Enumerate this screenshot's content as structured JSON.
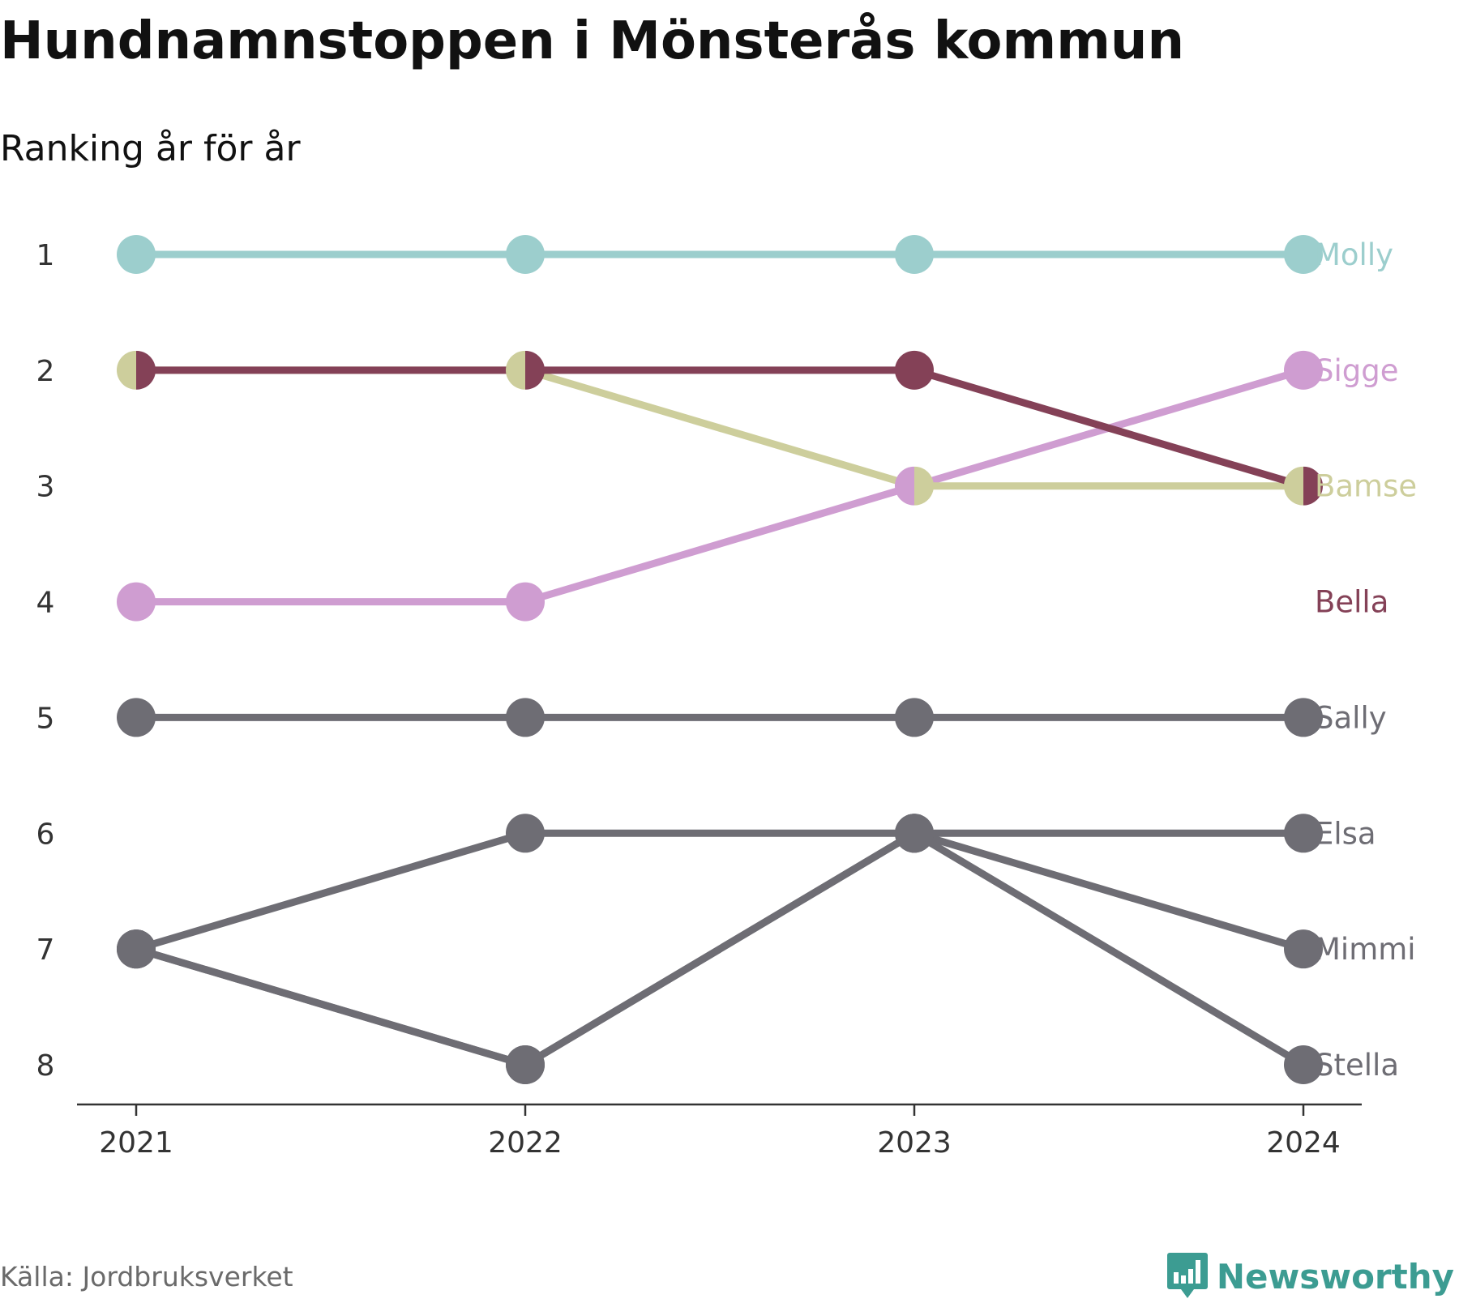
{
  "title": "Hundnamnstoppen i Mönsterås kommun",
  "subtitle": "Ranking år för år",
  "source": "Källa: Jordbruksverket",
  "brand": "Newsworthy",
  "brand_color": "#3c9c92",
  "chart_data": {
    "type": "line",
    "x": [
      "2021",
      "2022",
      "2023",
      "2024"
    ],
    "yticks": [
      "1",
      "2",
      "3",
      "4",
      "5",
      "6",
      "7",
      "8"
    ],
    "ylim": [
      1,
      8
    ],
    "y_inverted": true,
    "grid": false,
    "series": [
      {
        "name": "Molly",
        "values": [
          1,
          1,
          1,
          1
        ],
        "color": "#9ccecd"
      },
      {
        "name": "Sigge",
        "values": [
          4,
          4,
          3,
          2
        ],
        "color": "#cf9dd1"
      },
      {
        "name": "Bamse",
        "values": [
          2,
          2,
          3,
          3
        ],
        "color": "#cdce9c"
      },
      {
        "name": "Bella",
        "values": [
          2,
          2,
          2,
          3
        ],
        "color": "#844157"
      },
      {
        "name": "Sally",
        "values": [
          5,
          5,
          5,
          5
        ],
        "color": "#6e6d74"
      },
      {
        "name": "Elsa",
        "values": [
          7,
          6,
          6,
          6
        ],
        "color": "#6e6d74"
      },
      {
        "name": "Mimmi",
        "values": [
          7,
          8,
          6,
          7
        ],
        "color": "#6e6d74"
      },
      {
        "name": "Stella",
        "values": [
          7,
          8,
          6,
          8
        ],
        "color": "#6e6d74"
      }
    ],
    "label_rank": {
      "Molly": 1,
      "Sigge": 2,
      "Bamse": 3,
      "Bella": 4,
      "Sally": 5,
      "Elsa": 6,
      "Mimmi": 7,
      "Stella": 8
    }
  }
}
